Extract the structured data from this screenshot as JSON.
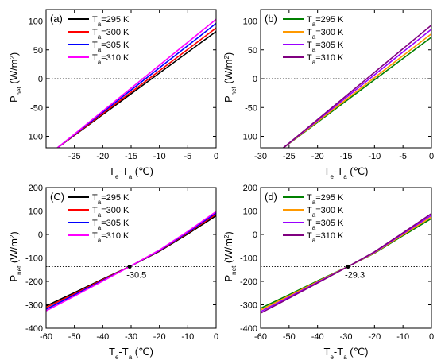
{
  "chart_data": [
    {
      "type": "line",
      "panel_label": "(a)",
      "xlabel": "Te-Ta (℃)",
      "ylabel": "Pnet (W/m2)",
      "xlim": [
        -30,
        0
      ],
      "ylim": [
        -120,
        120
      ],
      "xticks": [
        -25,
        -20,
        -15,
        -10,
        -5,
        0
      ],
      "yticks": [
        -100,
        -50,
        0,
        50,
        100
      ],
      "legend_position": "top-left",
      "reference_line": {
        "y": 0,
        "style": "dotted"
      },
      "series": [
        {
          "name": "Ta=295 K",
          "color": "#000000",
          "x": [
            -28,
            0
          ],
          "y": [
            -120,
            82
          ]
        },
        {
          "name": "Ta=300 K",
          "color": "#ff0000",
          "x": [
            -28,
            0
          ],
          "y": [
            -120,
            88
          ]
        },
        {
          "name": "Ta=305 K",
          "color": "#0000ff",
          "x": [
            -28,
            0
          ],
          "y": [
            -120,
            96
          ]
        },
        {
          "name": "Ta=310 K",
          "color": "#ff00ff",
          "x": [
            -28,
            0
          ],
          "y": [
            -120,
            103
          ]
        }
      ]
    },
    {
      "type": "line",
      "panel_label": "(b)",
      "xlabel": "Te-Ta (℃)",
      "ylabel": "Pnet (W/m2)",
      "xlim": [
        -30,
        0
      ],
      "ylim": [
        -120,
        120
      ],
      "xticks": [
        -30,
        -25,
        -20,
        -15,
        -10,
        -5,
        0
      ],
      "yticks": [
        -100,
        -50,
        0,
        50,
        100
      ],
      "legend_position": "top-left",
      "reference_line": {
        "y": 0,
        "style": "dotted"
      },
      "series": [
        {
          "name": "Ta=295 K",
          "color": "#008000",
          "x": [
            -26,
            0
          ],
          "y": [
            -120,
            72
          ]
        },
        {
          "name": "Ta=300 K",
          "color": "#ff9900",
          "x": [
            -26,
            0
          ],
          "y": [
            -120,
            78
          ]
        },
        {
          "name": "Ta=305 K",
          "color": "#9900ff",
          "x": [
            -26,
            0
          ],
          "y": [
            -120,
            86
          ]
        },
        {
          "name": "Ta=310 K",
          "color": "#800080",
          "x": [
            -26,
            0
          ],
          "y": [
            -120,
            93
          ]
        }
      ]
    },
    {
      "type": "line",
      "panel_label": "(C)",
      "xlabel": "Te-Ta (℃)",
      "ylabel": "Pnet (W/m2)",
      "xlim": [
        -60,
        0
      ],
      "ylim": [
        -400,
        200
      ],
      "xticks": [
        -60,
        -50,
        -40,
        -30,
        -20,
        -10,
        0
      ],
      "yticks": [
        -400,
        -300,
        -200,
        -100,
        0,
        100,
        200
      ],
      "legend_position": "top-left",
      "reference_line": {
        "y": -137,
        "style": "dotted"
      },
      "crossing_point": {
        "x": -30.5,
        "y": -137,
        "label": "-30.5"
      },
      "series": [
        {
          "name": "Ta=295 K",
          "color": "#000000",
          "x": [
            -60,
            -50,
            -40,
            -30.5,
            -20,
            -10,
            0
          ],
          "y": [
            -305,
            -248,
            -190,
            -137,
            -72,
            2,
            80
          ]
        },
        {
          "name": "Ta=300 K",
          "color": "#ff0000",
          "x": [
            -60,
            -50,
            -40,
            -30.5,
            -20,
            -10,
            0
          ],
          "y": [
            -312,
            -253,
            -193,
            -137,
            -70,
            6,
            86
          ]
        },
        {
          "name": "Ta=305 K",
          "color": "#0000ff",
          "x": [
            -60,
            -50,
            -40,
            -30.5,
            -20,
            -10,
            0
          ],
          "y": [
            -319,
            -258,
            -196,
            -137,
            -68,
            9,
            92
          ]
        },
        {
          "name": "Ta=310 K",
          "color": "#ff00ff",
          "x": [
            -60,
            -50,
            -40,
            -30.5,
            -20,
            -10,
            0
          ],
          "y": [
            -326,
            -263,
            -199,
            -137,
            -66,
            13,
            98
          ]
        }
      ]
    },
    {
      "type": "line",
      "panel_label": "(d)",
      "xlabel": "Te-Ta (℃)",
      "ylabel": "Pnet (W/m2)",
      "xlim": [
        -60,
        0
      ],
      "ylim": [
        -400,
        200
      ],
      "xticks": [
        -60,
        -50,
        -40,
        -30,
        -20,
        -10,
        0
      ],
      "yticks": [
        -400,
        -300,
        -200,
        -100,
        0,
        100,
        200
      ],
      "legend_position": "top-left",
      "reference_line": {
        "y": -137,
        "style": "dotted"
      },
      "crossing_point": {
        "x": -29.3,
        "y": -137,
        "label": "-29.3"
      },
      "series": [
        {
          "name": "Ta=295 K",
          "color": "#008000",
          "x": [
            -60,
            -50,
            -40,
            -29.3,
            -20,
            -10,
            0
          ],
          "y": [
            -315,
            -257,
            -198,
            -137,
            -80,
            -5,
            68
          ]
        },
        {
          "name": "Ta=300 K",
          "color": "#ff9900",
          "x": [
            -60,
            -50,
            -40,
            -29.3,
            -20,
            -10,
            0
          ],
          "y": [
            -322,
            -262,
            -201,
            -137,
            -78,
            -1,
            75
          ]
        },
        {
          "name": "Ta=305 K",
          "color": "#9900ff",
          "x": [
            -60,
            -50,
            -40,
            -29.3,
            -20,
            -10,
            0
          ],
          "y": [
            -329,
            -267,
            -204,
            -137,
            -76,
            3,
            82
          ]
        },
        {
          "name": "Ta=310 K",
          "color": "#800080",
          "x": [
            -60,
            -50,
            -40,
            -29.3,
            -20,
            -10,
            0
          ],
          "y": [
            -336,
            -272,
            -207,
            -137,
            -74,
            7,
            89
          ]
        }
      ]
    }
  ]
}
